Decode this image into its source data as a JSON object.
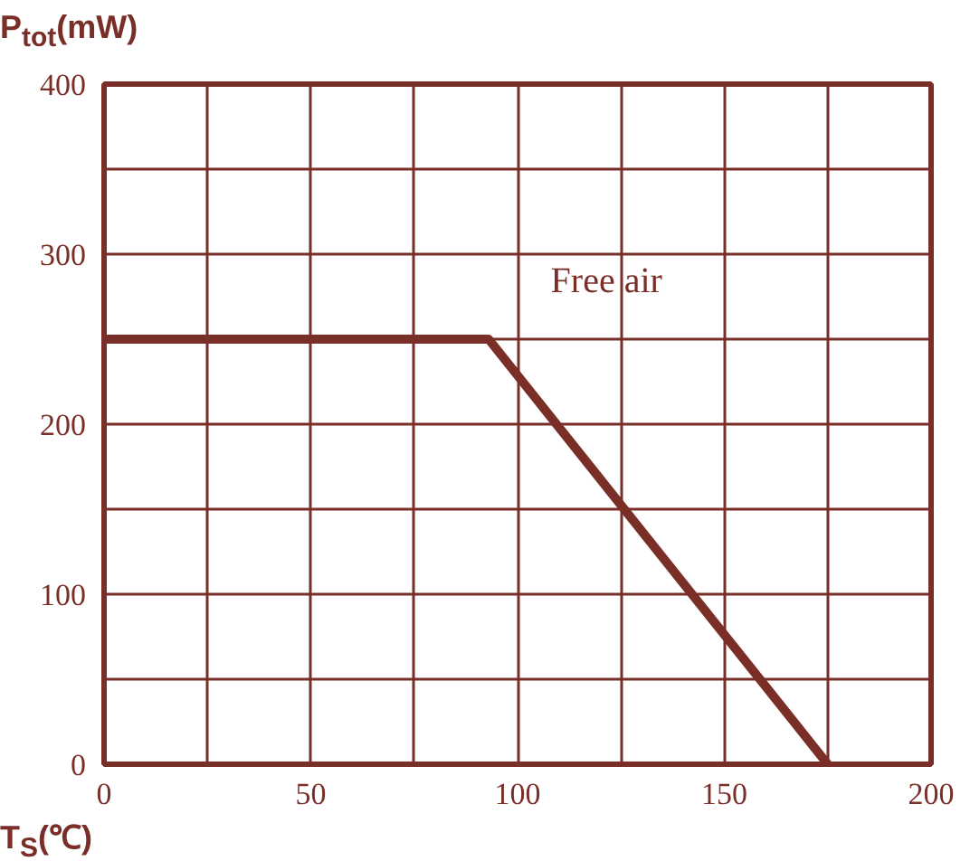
{
  "chart_data": {
    "type": "line",
    "xlabel": "T$_{S}$(℃)",
    "ylabel": "P$_{tot}$(mW)",
    "x": [
      0,
      93,
      175
    ],
    "series": [
      {
        "color": "#7a2e28",
        "values": [
          250,
          250,
          0
        ]
      }
    ],
    "xlim": [
      0,
      200
    ],
    "ylim": [
      0,
      400
    ],
    "xticks": [
      0,
      {
        "value": 25,
        "label": null
      },
      50,
      {
        "value": 75,
        "label": null
      },
      100,
      {
        "value": 125,
        "label": null
      },
      150,
      {
        "value": 175,
        "label": null
      },
      200
    ],
    "yticks": [
      0,
      {
        "value": 50,
        "label": null
      },
      100,
      {
        "value": 150,
        "label": null
      },
      200,
      {
        "value": 250,
        "label": null
      },
      300,
      {
        "value": 350,
        "label": null
      },
      400
    ],
    "grid": true,
    "marker": "none",
    "line_style": "solid",
    "annotations": [
      "Free air"
    ]
  }
}
